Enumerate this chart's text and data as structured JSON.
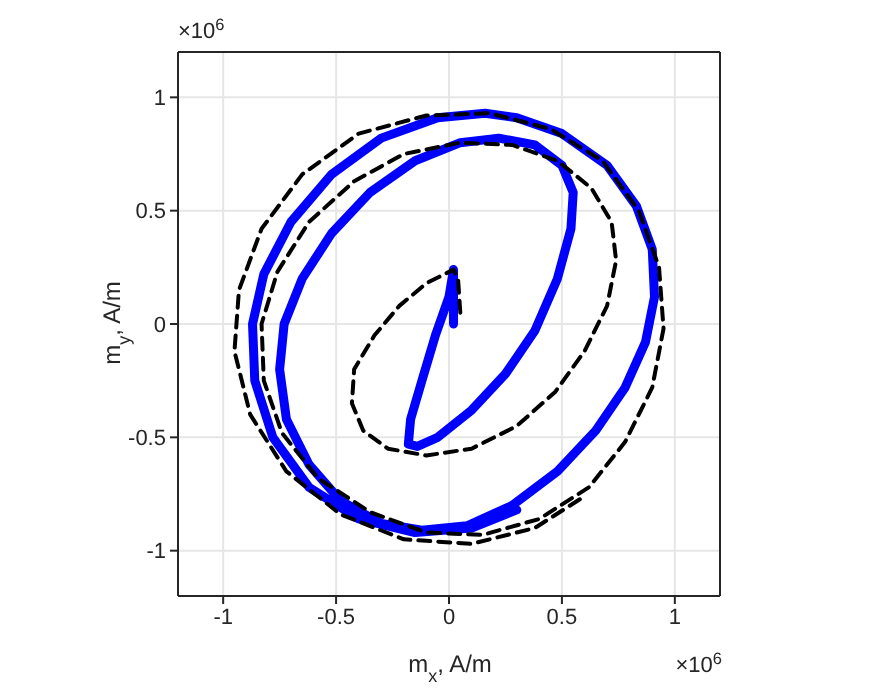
{
  "chart_data": {
    "type": "line",
    "xlabel": "m$_{x}$,  A/m",
    "ylabel": "m$_{y}$,  A/m",
    "annotations": [
      "×10$^{6}$",
      "×10$^{6}$"
    ],
    "xlim": [
      -1.2,
      1.2
    ],
    "ylim": [
      -1.2,
      1.2
    ],
    "xticks": [
      -1,
      -0.5,
      0,
      0.5,
      1
    ],
    "yticks": [
      -1,
      -0.5,
      0,
      0.5,
      1
    ],
    "grid": true,
    "marker": "none",
    "series": [
      {
        "color": "#0000ff",
        "line_style": "solid",
        "x": [
          0.02,
          0.02,
          0.0,
          -0.06,
          -0.12,
          -0.17,
          -0.18,
          -0.14,
          -0.05,
          0.1,
          0.25,
          0.38,
          0.48,
          0.54,
          0.55,
          0.5,
          0.38,
          0.22,
          0.05,
          -0.15,
          -0.35,
          -0.52,
          -0.65,
          -0.73,
          -0.75,
          -0.72,
          -0.62,
          -0.48,
          -0.3,
          -0.12,
          0.08,
          0.28,
          0.48,
          0.65,
          0.78,
          0.87,
          0.91,
          0.9,
          0.83,
          0.7,
          0.5,
          0.3,
          0.16,
          -0.05,
          -0.3,
          -0.52,
          -0.7,
          -0.82,
          -0.87,
          -0.86,
          -0.78,
          -0.62,
          -0.4,
          -0.15,
          0.1,
          0.3
        ],
        "values": [
          0.0,
          0.24,
          0.12,
          -0.05,
          -0.25,
          -0.42,
          -0.53,
          -0.54,
          -0.5,
          -0.38,
          -0.22,
          -0.03,
          0.2,
          0.42,
          0.58,
          0.7,
          0.79,
          0.82,
          0.8,
          0.72,
          0.58,
          0.4,
          0.2,
          0.0,
          -0.2,
          -0.42,
          -0.62,
          -0.78,
          -0.88,
          -0.91,
          -0.89,
          -0.8,
          -0.65,
          -0.47,
          -0.28,
          -0.08,
          0.12,
          0.33,
          0.52,
          0.7,
          0.84,
          0.91,
          0.93,
          0.91,
          0.82,
          0.66,
          0.45,
          0.22,
          0.0,
          -0.25,
          -0.5,
          -0.72,
          -0.86,
          -0.92,
          -0.9,
          -0.82
        ]
      },
      {
        "color": "#000000",
        "line_style": "dashed",
        "x": [
          0.05,
          0.04,
          0.02,
          -0.1,
          -0.22,
          -0.33,
          -0.42,
          -0.43,
          -0.38,
          -0.27,
          -0.1,
          0.1,
          0.3,
          0.47,
          0.6,
          0.7,
          0.74,
          0.72,
          0.63,
          0.48,
          0.28,
          0.05,
          -0.2,
          -0.42,
          -0.62,
          -0.76,
          -0.83,
          -0.82,
          -0.74,
          -0.58,
          -0.35,
          -0.1,
          0.15,
          0.4,
          0.62,
          0.78,
          0.9,
          0.95,
          0.93,
          0.84,
          0.68,
          0.45,
          0.18,
          -0.1,
          -0.4,
          -0.65,
          -0.83,
          -0.93,
          -0.95,
          -0.88,
          -0.72,
          -0.48,
          -0.2,
          0.1,
          0.38,
          0.6
        ],
        "values": [
          0.05,
          0.2,
          0.24,
          0.18,
          0.08,
          -0.05,
          -0.2,
          -0.35,
          -0.47,
          -0.55,
          -0.58,
          -0.55,
          -0.45,
          -0.3,
          -0.12,
          0.08,
          0.28,
          0.45,
          0.6,
          0.72,
          0.79,
          0.8,
          0.75,
          0.63,
          0.45,
          0.23,
          0.0,
          -0.25,
          -0.48,
          -0.68,
          -0.83,
          -0.92,
          -0.93,
          -0.86,
          -0.72,
          -0.52,
          -0.28,
          -0.02,
          0.25,
          0.5,
          0.72,
          0.86,
          0.93,
          0.92,
          0.84,
          0.66,
          0.42,
          0.15,
          -0.12,
          -0.4,
          -0.65,
          -0.84,
          -0.95,
          -0.97,
          -0.9,
          -0.76
        ]
      }
    ]
  }
}
